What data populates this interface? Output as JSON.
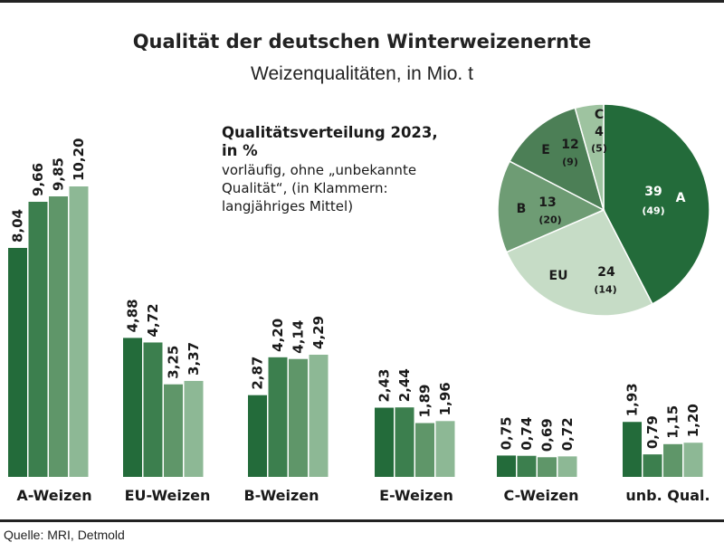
{
  "title": "Qualität der deutschen Winterweizenernte",
  "subtitle": "Weizenqualitäten, in Mio. t",
  "source": "Quelle: MRI, Detmold",
  "inset": {
    "title_line1": "Qualitätsverteilung 2023,",
    "title_line2": "in %",
    "note_line1": "vorläufig, ohne „unbekannte",
    "note_line2": "Qualität“, (in Klammern:",
    "note_line3": "langjähriges Mittel)"
  },
  "chart_data": [
    {
      "type": "bar",
      "categories": [
        "A-Weizen",
        "EU-Weizen",
        "B-Weizen",
        "E-Weizen",
        "C-Weizen",
        "unb. Qual."
      ],
      "series": [
        {
          "values": [
            8.04,
            4.88,
            2.87,
            2.43,
            0.75,
            1.93
          ],
          "labels": [
            "8,04",
            "4,88",
            "2,87",
            "2,43",
            "0,75",
            "1,93"
          ],
          "color": "#236b3a"
        },
        {
          "values": [
            9.66,
            4.72,
            4.2,
            2.44,
            0.74,
            0.79
          ],
          "labels": [
            "9,66",
            "4,72",
            "4,20",
            "2,44",
            "0,74",
            "0,79"
          ],
          "color": "#3c7f4e"
        },
        {
          "values": [
            9.85,
            3.25,
            4.14,
            1.89,
            0.69,
            1.15
          ],
          "labels": [
            "9,85",
            "3,25",
            "4,14",
            "1,89",
            "0,69",
            "1,15"
          ],
          "color": "#5f9669"
        },
        {
          "values": [
            10.2,
            3.37,
            4.29,
            1.96,
            0.72,
            1.2
          ],
          "labels": [
            "10,20",
            "3,37",
            "4,29",
            "1,96",
            "0,72",
            "1,20"
          ],
          "color": "#8db895"
        }
      ],
      "ylim": [
        0,
        10.2
      ]
    },
    {
      "type": "pie",
      "slices": [
        {
          "label": "A",
          "value": 39,
          "average": "(49)",
          "color": "#236b3a"
        },
        {
          "label": "EU",
          "value": 24,
          "average": "(14)",
          "color": "#c6dcc6"
        },
        {
          "label": "B",
          "value": 13,
          "average": "(20)",
          "color": "#6e9c74"
        },
        {
          "label": "E",
          "value": 12,
          "average": "(9)",
          "color": "#4c7f56"
        },
        {
          "label": "C",
          "value": 4,
          "average": "(5)",
          "color": "#9ec3a0"
        }
      ]
    }
  ]
}
